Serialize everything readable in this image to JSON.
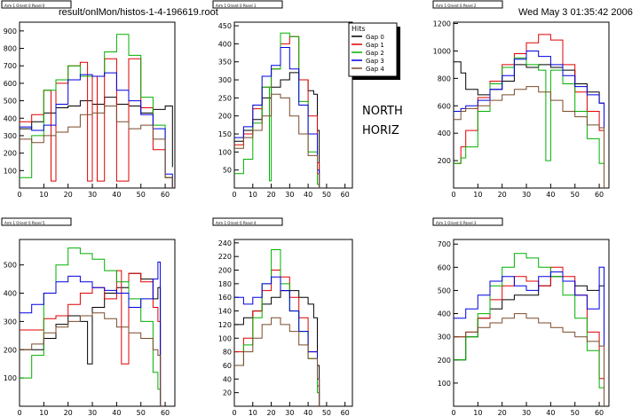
{
  "header": {
    "file_label": "result/onlMon/histos-1-4-196619.root",
    "date_label": "Wed May  3 01:35:42 2006"
  },
  "annotation": {
    "line1": "NORTH",
    "line2": "HORIZ"
  },
  "legend": {
    "title": "Hits",
    "entries": [
      {
        "name": "Gap 0",
        "color": "#000000"
      },
      {
        "name": "Gap 1",
        "color": "#e00000"
      },
      {
        "name": "Gap 2",
        "color": "#00b000"
      },
      {
        "name": "Gap 3",
        "color": "#0000e0"
      },
      {
        "name": "Gap 4",
        "color": "#7a4a2a"
      }
    ]
  },
  "colors": {
    "gap0": "#000000",
    "gap1": "#e00000",
    "gap2": "#00b000",
    "gap3": "#0000e0",
    "gap4": "#7a4a2a"
  },
  "chart_data": [
    {
      "type": "line",
      "title": "Arm 1 Orient 0 Panel 0",
      "xlim": [
        0,
        64
      ],
      "ylim": [
        0,
        950
      ],
      "xticks": [
        0,
        10,
        20,
        30,
        40,
        50,
        60
      ],
      "yticks": [
        100,
        200,
        300,
        400,
        500,
        600,
        700,
        800,
        900
      ],
      "series": [
        {
          "name": "Gap 0",
          "x": [
            0,
            5,
            10,
            15,
            20,
            25,
            30,
            35,
            40,
            45,
            50,
            55,
            60,
            63
          ],
          "y": [
            340,
            380,
            430,
            460,
            470,
            500,
            480,
            520,
            480,
            470,
            430,
            450,
            470,
            120
          ]
        },
        {
          "name": "Gap 1",
          "x": [
            0,
            5,
            10,
            13,
            15,
            20,
            25,
            28,
            30,
            32,
            35,
            40,
            45,
            50,
            55,
            60,
            63
          ],
          "y": [
            380,
            420,
            560,
            40,
            600,
            700,
            720,
            40,
            640,
            40,
            740,
            40,
            740,
            460,
            220,
            60,
            0
          ]
        },
        {
          "name": "Gap 2",
          "x": [
            0,
            5,
            10,
            15,
            20,
            25,
            30,
            35,
            40,
            45,
            50,
            55,
            60,
            63
          ],
          "y": [
            60,
            300,
            560,
            620,
            700,
            640,
            640,
            780,
            880,
            760,
            520,
            360,
            60,
            0
          ]
        },
        {
          "name": "Gap 3",
          "x": [
            0,
            5,
            10,
            15,
            20,
            25,
            30,
            35,
            40,
            45,
            50,
            55,
            60,
            63
          ],
          "y": [
            350,
            330,
            360,
            480,
            620,
            650,
            640,
            660,
            560,
            500,
            420,
            340,
            80,
            0
          ]
        },
        {
          "name": "Gap 4",
          "x": [
            0,
            5,
            10,
            15,
            20,
            25,
            30,
            35,
            40,
            45,
            50,
            55,
            60,
            63
          ],
          "y": [
            280,
            260,
            300,
            320,
            350,
            420,
            430,
            470,
            380,
            340,
            360,
            280,
            60,
            0
          ]
        }
      ]
    },
    {
      "type": "line",
      "title": "Arm 1 Orient 0 Panel 1",
      "xlim": [
        0,
        64
      ],
      "ylim": [
        0,
        460
      ],
      "xticks": [
        0,
        10,
        20,
        30,
        40,
        50,
        60
      ],
      "yticks": [
        50,
        100,
        150,
        200,
        250,
        300,
        350,
        400,
        450
      ],
      "series": [
        {
          "name": "Gap 0",
          "x": [
            0,
            5,
            10,
            15,
            20,
            25,
            30,
            35,
            40,
            43,
            45,
            46
          ],
          "y": [
            130,
            160,
            190,
            250,
            280,
            300,
            320,
            300,
            270,
            260,
            160,
            0
          ]
        },
        {
          "name": "Gap 1",
          "x": [
            0,
            5,
            10,
            15,
            20,
            25,
            30,
            35,
            40,
            45,
            46
          ],
          "y": [
            120,
            150,
            220,
            280,
            330,
            400,
            420,
            300,
            200,
            70,
            0
          ]
        },
        {
          "name": "Gap 2",
          "x": [
            0,
            5,
            10,
            15,
            19,
            20,
            25,
            30,
            35,
            40,
            45,
            46
          ],
          "y": [
            40,
            80,
            180,
            280,
            20,
            330,
            430,
            420,
            240,
            100,
            10,
            0
          ]
        },
        {
          "name": "Gap 3",
          "x": [
            0,
            5,
            10,
            15,
            20,
            25,
            30,
            35,
            40,
            45,
            46
          ],
          "y": [
            140,
            170,
            230,
            310,
            340,
            390,
            330,
            230,
            150,
            50,
            0
          ]
        },
        {
          "name": "Gap 4",
          "x": [
            0,
            5,
            10,
            15,
            20,
            25,
            30,
            35,
            40,
            45,
            46
          ],
          "y": [
            110,
            140,
            160,
            200,
            260,
            250,
            200,
            150,
            90,
            40,
            0
          ]
        }
      ]
    },
    {
      "type": "line",
      "title": "Arm 1 Orient 0 Panel 2",
      "xlim": [
        0,
        64
      ],
      "ylim": [
        0,
        1210
      ],
      "xticks": [
        0,
        10,
        20,
        30,
        40,
        50,
        60
      ],
      "yticks": [
        200,
        400,
        600,
        800,
        1000,
        1200
      ],
      "series": [
        {
          "name": "Gap 0",
          "x": [
            0,
            3,
            5,
            10,
            15,
            20,
            25,
            30,
            35,
            40,
            45,
            50,
            55,
            60,
            62
          ],
          "y": [
            920,
            840,
            720,
            680,
            720,
            780,
            900,
            880,
            900,
            880,
            860,
            760,
            700,
            620,
            0
          ]
        },
        {
          "name": "Gap 1",
          "x": [
            0,
            3,
            5,
            10,
            15,
            20,
            25,
            30,
            35,
            40,
            45,
            50,
            55,
            60,
            62
          ],
          "y": [
            180,
            300,
            420,
            660,
            780,
            900,
            980,
            1060,
            1120,
            1080,
            900,
            700,
            560,
            420,
            0
          ]
        },
        {
          "name": "Gap 2",
          "x": [
            0,
            3,
            5,
            10,
            15,
            20,
            25,
            30,
            35,
            38,
            40,
            45,
            50,
            55,
            60,
            62
          ],
          "y": [
            180,
            220,
            300,
            560,
            760,
            880,
            950,
            900,
            860,
            200,
            860,
            760,
            560,
            360,
            180,
            0
          ]
        },
        {
          "name": "Gap 3",
          "x": [
            0,
            3,
            5,
            10,
            15,
            20,
            25,
            30,
            35,
            40,
            45,
            50,
            55,
            60,
            62
          ],
          "y": [
            560,
            580,
            600,
            640,
            720,
            820,
            940,
            1000,
            960,
            900,
            820,
            740,
            680,
            620,
            0
          ]
        },
        {
          "name": "Gap 4",
          "x": [
            0,
            3,
            5,
            10,
            15,
            20,
            25,
            30,
            35,
            40,
            45,
            50,
            55,
            60,
            62
          ],
          "y": [
            500,
            560,
            580,
            600,
            640,
            680,
            720,
            740,
            700,
            640,
            560,
            520,
            460,
            440,
            0
          ]
        }
      ]
    },
    {
      "type": "line",
      "title": "Arm 1 Orient 0 Panel 5",
      "xlim": [
        0,
        64
      ],
      "ylim": [
        0,
        590
      ],
      "xticks": [
        0,
        10,
        20,
        30,
        40,
        50,
        60
      ],
      "yticks": [
        100,
        200,
        300,
        400,
        500
      ],
      "series": [
        {
          "name": "Gap 0",
          "x": [
            0,
            5,
            10,
            15,
            20,
            25,
            28,
            30,
            35,
            40,
            45,
            50,
            55,
            57,
            58
          ],
          "y": [
            200,
            200,
            240,
            290,
            320,
            300,
            150,
            350,
            400,
            420,
            470,
            450,
            380,
            420,
            0
          ]
        },
        {
          "name": "Gap 1",
          "x": [
            0,
            5,
            10,
            15,
            20,
            25,
            30,
            35,
            40,
            42,
            45,
            50,
            55,
            57,
            58
          ],
          "y": [
            270,
            270,
            310,
            320,
            360,
            400,
            420,
            380,
            480,
            150,
            470,
            440,
            350,
            300,
            0
          ]
        },
        {
          "name": "Gap 2",
          "x": [
            0,
            5,
            10,
            15,
            20,
            25,
            30,
            35,
            40,
            45,
            50,
            55,
            57,
            58
          ],
          "y": [
            100,
            180,
            400,
            500,
            560,
            540,
            520,
            480,
            440,
            380,
            300,
            120,
            60,
            0
          ]
        },
        {
          "name": "Gap 3",
          "x": [
            0,
            5,
            10,
            15,
            20,
            25,
            30,
            35,
            40,
            45,
            50,
            55,
            57,
            58
          ],
          "y": [
            330,
            360,
            400,
            440,
            460,
            440,
            420,
            410,
            400,
            350,
            380,
            450,
            510,
            0
          ]
        },
        {
          "name": "Gap 4",
          "x": [
            0,
            5,
            10,
            15,
            20,
            25,
            30,
            35,
            40,
            45,
            50,
            55,
            57,
            58
          ],
          "y": [
            200,
            220,
            260,
            280,
            300,
            320,
            330,
            310,
            280,
            260,
            240,
            200,
            180,
            0
          ]
        }
      ]
    },
    {
      "type": "line",
      "title": "Arm 1 Orient 0 Panel 4",
      "xlim": [
        0,
        64
      ],
      "ylim": [
        0,
        245
      ],
      "xticks": [
        0,
        10,
        20,
        30,
        40,
        50,
        60
      ],
      "yticks": [
        20,
        40,
        60,
        80,
        100,
        120,
        140,
        160,
        180,
        200,
        220,
        240
      ],
      "series": [
        {
          "name": "Gap 0",
          "x": [
            0,
            5,
            10,
            15,
            20,
            25,
            30,
            35,
            40,
            43,
            45,
            46
          ],
          "y": [
            120,
            130,
            140,
            150,
            160,
            170,
            170,
            160,
            150,
            130,
            60,
            0
          ]
        },
        {
          "name": "Gap 1",
          "x": [
            0,
            5,
            10,
            15,
            20,
            25,
            30,
            35,
            40,
            45,
            46
          ],
          "y": [
            80,
            100,
            140,
            170,
            200,
            190,
            160,
            130,
            80,
            30,
            0
          ]
        },
        {
          "name": "Gap 2",
          "x": [
            0,
            5,
            10,
            15,
            20,
            25,
            30,
            35,
            40,
            45,
            46
          ],
          "y": [
            60,
            90,
            130,
            180,
            230,
            180,
            140,
            110,
            70,
            20,
            0
          ]
        },
        {
          "name": "Gap 3",
          "x": [
            0,
            5,
            10,
            15,
            20,
            25,
            30,
            35,
            40,
            45,
            46
          ],
          "y": [
            160,
            150,
            160,
            180,
            190,
            170,
            140,
            110,
            80,
            40,
            0
          ]
        },
        {
          "name": "Gap 4",
          "x": [
            0,
            5,
            10,
            15,
            20,
            25,
            30,
            35,
            40,
            45,
            46
          ],
          "y": [
            60,
            80,
            100,
            120,
            130,
            120,
            110,
            90,
            70,
            40,
            0
          ]
        }
      ]
    },
    {
      "type": "line",
      "title": "Arm 1 Orient 0 Panel 3",
      "xlim": [
        0,
        64
      ],
      "ylim": [
        0,
        720
      ],
      "xticks": [
        0,
        10,
        20,
        30,
        40,
        50,
        60
      ],
      "yticks": [
        100,
        200,
        300,
        400,
        500,
        600,
        700
      ],
      "series": [
        {
          "name": "Gap 0",
          "x": [
            0,
            5,
            10,
            15,
            20,
            25,
            30,
            35,
            40,
            45,
            50,
            55,
            60,
            62
          ],
          "y": [
            200,
            300,
            380,
            420,
            460,
            480,
            480,
            520,
            560,
            540,
            520,
            500,
            520,
            0
          ]
        },
        {
          "name": "Gap 1",
          "x": [
            0,
            5,
            10,
            15,
            20,
            25,
            30,
            35,
            40,
            45,
            50,
            55,
            60,
            62
          ],
          "y": [
            300,
            320,
            380,
            460,
            520,
            560,
            540,
            520,
            600,
            560,
            480,
            320,
            120,
            0
          ]
        },
        {
          "name": "Gap 2",
          "x": [
            0,
            5,
            10,
            15,
            20,
            25,
            30,
            35,
            40,
            45,
            50,
            55,
            60,
            62
          ],
          "y": [
            200,
            300,
            400,
            520,
            600,
            660,
            640,
            600,
            560,
            480,
            380,
            240,
            80,
            0
          ]
        },
        {
          "name": "Gap 3",
          "x": [
            0,
            5,
            10,
            15,
            20,
            25,
            30,
            35,
            40,
            45,
            50,
            55,
            60,
            62
          ],
          "y": [
            380,
            420,
            480,
            540,
            560,
            520,
            500,
            560,
            580,
            540,
            480,
            420,
            600,
            0
          ]
        },
        {
          "name": "Gap 4",
          "x": [
            0,
            5,
            10,
            15,
            20,
            25,
            30,
            35,
            40,
            45,
            50,
            55,
            60,
            62
          ],
          "y": [
            300,
            320,
            340,
            360,
            380,
            400,
            380,
            360,
            340,
            320,
            300,
            280,
            260,
            0
          ]
        }
      ]
    }
  ]
}
